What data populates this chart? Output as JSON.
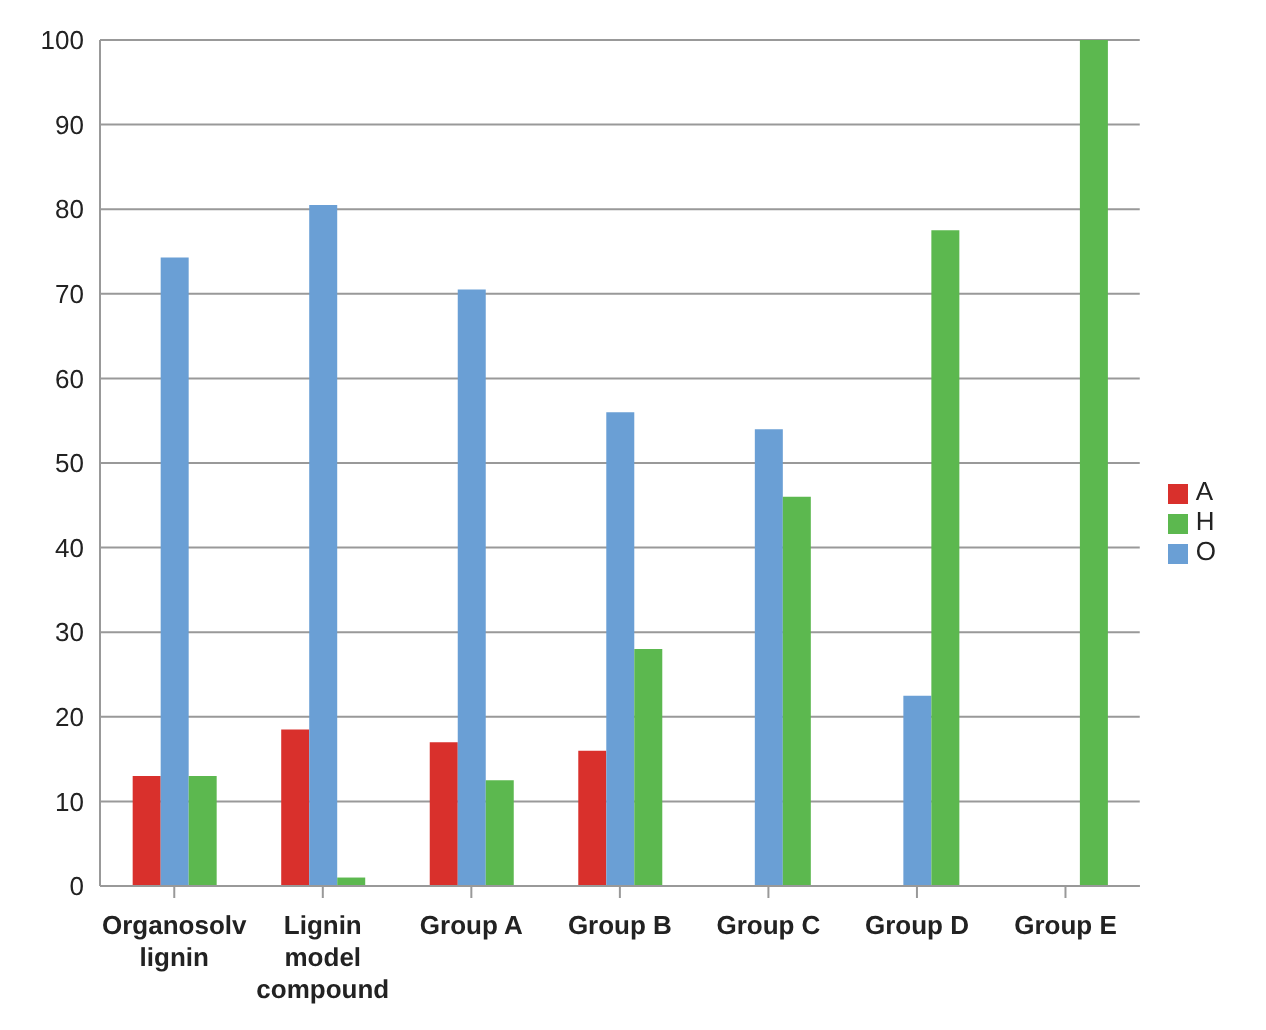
{
  "chart_data": {
    "type": "bar",
    "categories": [
      "Organosolv lignin",
      "Lignin model compound",
      "Group A",
      "Group B",
      "Group C",
      "Group D",
      "Group E"
    ],
    "series": [
      {
        "name": "A",
        "color": "#d9302c",
        "values": [
          13,
          18.5,
          17,
          16,
          0,
          0,
          0
        ]
      },
      {
        "name": "O",
        "color": "#6a9fd5",
        "values": [
          74.3,
          80.5,
          70.5,
          56,
          54,
          22.5,
          0
        ]
      },
      {
        "name": "H",
        "color": "#5cb84f",
        "values": [
          13,
          1,
          12.5,
          28,
          46,
          77.5,
          100
        ]
      }
    ],
    "ylim": [
      0,
      100
    ],
    "yticks": [
      0,
      10,
      20,
      30,
      40,
      50,
      60,
      70,
      80,
      90,
      100
    ],
    "grid": "y",
    "legend": "right"
  }
}
